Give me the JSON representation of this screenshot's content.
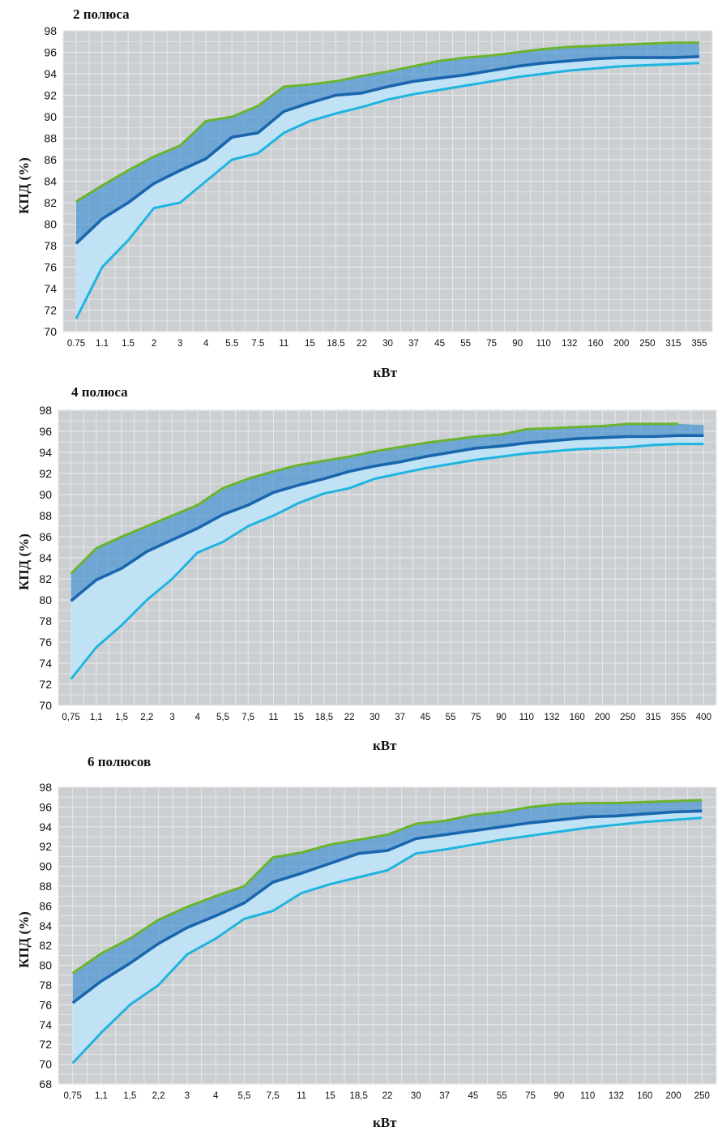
{
  "chart_data": [
    {
      "type": "line",
      "title": "2 полюса",
      "ylabel": "КПД (%)",
      "xlabel": "кВт",
      "ylim": [
        70,
        98
      ],
      "yticks": [
        70,
        72,
        74,
        76,
        78,
        80,
        82,
        84,
        86,
        88,
        90,
        92,
        94,
        96,
        98
      ],
      "categories": [
        "0.75",
        "1.1",
        "1.5",
        "2",
        "3",
        "4",
        "5.5",
        "7.5",
        "11",
        "15",
        "18.5",
        "22",
        "30",
        "37",
        "45",
        "55",
        "75",
        "90",
        "110",
        "132",
        "160",
        "200",
        "250",
        "315",
        "355"
      ],
      "series": [
        {
          "color": "#6ab42d",
          "values": [
            82.1,
            83.6,
            85.0,
            86.3,
            87.3,
            89.6,
            90.0,
            91.0,
            92.8,
            93.0,
            93.3,
            93.8,
            94.2,
            94.7,
            95.2,
            95.5,
            95.7,
            96.0,
            96.3,
            96.5,
            96.6,
            96.7,
            96.8,
            96.9,
            96.9
          ]
        },
        {
          "color": "#1a66ae",
          "values": [
            78.2,
            80.5,
            82.0,
            83.8,
            85.0,
            86.1,
            88.1,
            88.5,
            90.5,
            91.3,
            92.0,
            92.2,
            92.8,
            93.3,
            93.6,
            93.9,
            94.3,
            94.7,
            95.0,
            95.2,
            95.4,
            95.5,
            95.5,
            95.5,
            95.6
          ]
        },
        {
          "color": "#1fb4e0",
          "values": [
            71.2,
            76.0,
            78.5,
            81.5,
            82.0,
            84.0,
            86.0,
            86.6,
            88.5,
            89.6,
            90.3,
            90.9,
            91.6,
            92.1,
            92.5,
            92.9,
            93.3,
            93.7,
            94.0,
            94.3,
            94.5,
            94.7,
            94.8,
            94.9,
            95.0
          ]
        }
      ]
    },
    {
      "type": "line",
      "title": "4 полюса",
      "ylabel": "КПД (%)",
      "xlabel": "кВт",
      "ylim": [
        70,
        98
      ],
      "yticks": [
        70,
        72,
        74,
        76,
        78,
        80,
        82,
        84,
        86,
        88,
        90,
        92,
        94,
        96,
        98
      ],
      "categories": [
        "0,75",
        "1,1",
        "1,5",
        "2,2",
        "3",
        "4",
        "5,5",
        "7,5",
        "11",
        "15",
        "18,5",
        "22",
        "30",
        "37",
        "45",
        "55",
        "75",
        "90",
        "110",
        "132",
        "160",
        "200",
        "250",
        "315",
        "355",
        "400"
      ],
      "series": [
        {
          "color": "#6ab42d",
          "values": [
            82.5,
            84.9,
            86.0,
            87.0,
            88.0,
            89.0,
            90.6,
            91.5,
            92.2,
            92.8,
            93.2,
            93.6,
            94.1,
            94.5,
            94.9,
            95.2,
            95.5,
            95.7,
            96.2,
            96.3,
            96.4,
            96.5,
            96.7,
            96.7,
            96.7,
            null
          ]
        },
        {
          "color": "#1a66ae",
          "values": [
            79.9,
            81.9,
            83.0,
            84.6,
            85.7,
            86.8,
            88.1,
            89.0,
            90.2,
            90.9,
            91.5,
            92.2,
            92.7,
            93.1,
            93.6,
            94.0,
            94.4,
            94.6,
            94.9,
            95.1,
            95.3,
            95.4,
            95.5,
            95.5,
            95.6,
            95.6
          ]
        },
        {
          "color": "#1fb4e0",
          "values": [
            72.5,
            75.5,
            77.6,
            80.0,
            82.0,
            84.5,
            85.5,
            87.0,
            88.0,
            89.2,
            90.1,
            90.6,
            91.5,
            92.0,
            92.5,
            92.9,
            93.3,
            93.6,
            93.9,
            94.1,
            94.3,
            94.4,
            94.5,
            94.7,
            94.8,
            94.8
          ]
        }
      ]
    },
    {
      "type": "line",
      "title": "6 полюсов",
      "ylabel": "КПД (%)",
      "xlabel": "кВт",
      "ylim": [
        68,
        98
      ],
      "yticks": [
        68,
        70,
        72,
        74,
        76,
        78,
        80,
        82,
        84,
        86,
        88,
        90,
        92,
        94,
        96,
        98
      ],
      "categories": [
        "0,75",
        "1,1",
        "1,5",
        "2,2",
        "3",
        "4",
        "5,5",
        "7,5",
        "11",
        "15",
        "18,5",
        "22",
        "30",
        "37",
        "45",
        "55",
        "75",
        "90",
        "110",
        "132",
        "160",
        "200",
        "250"
      ],
      "series": [
        {
          "color": "#6ab42d",
          "values": [
            79.2,
            81.2,
            82.7,
            84.6,
            85.9,
            87.0,
            88.0,
            90.9,
            91.4,
            92.2,
            92.7,
            93.2,
            94.3,
            94.6,
            95.2,
            95.5,
            96.0,
            96.3,
            96.4,
            96.4,
            96.5,
            96.6,
            96.7
          ]
        },
        {
          "color": "#1a66ae",
          "values": [
            76.2,
            78.4,
            80.2,
            82.2,
            83.8,
            85.0,
            86.3,
            88.4,
            89.3,
            90.3,
            91.3,
            91.6,
            92.8,
            93.2,
            93.6,
            94.0,
            94.4,
            94.7,
            95.0,
            95.1,
            95.3,
            95.5,
            95.6
          ]
        },
        {
          "color": "#1fb4e0",
          "values": [
            70.1,
            73.2,
            76.0,
            78.0,
            81.1,
            82.7,
            84.7,
            85.5,
            87.3,
            88.2,
            88.9,
            89.6,
            91.3,
            91.7,
            92.2,
            92.7,
            93.1,
            93.5,
            93.9,
            94.2,
            94.5,
            94.7,
            94.9
          ]
        }
      ]
    }
  ]
}
